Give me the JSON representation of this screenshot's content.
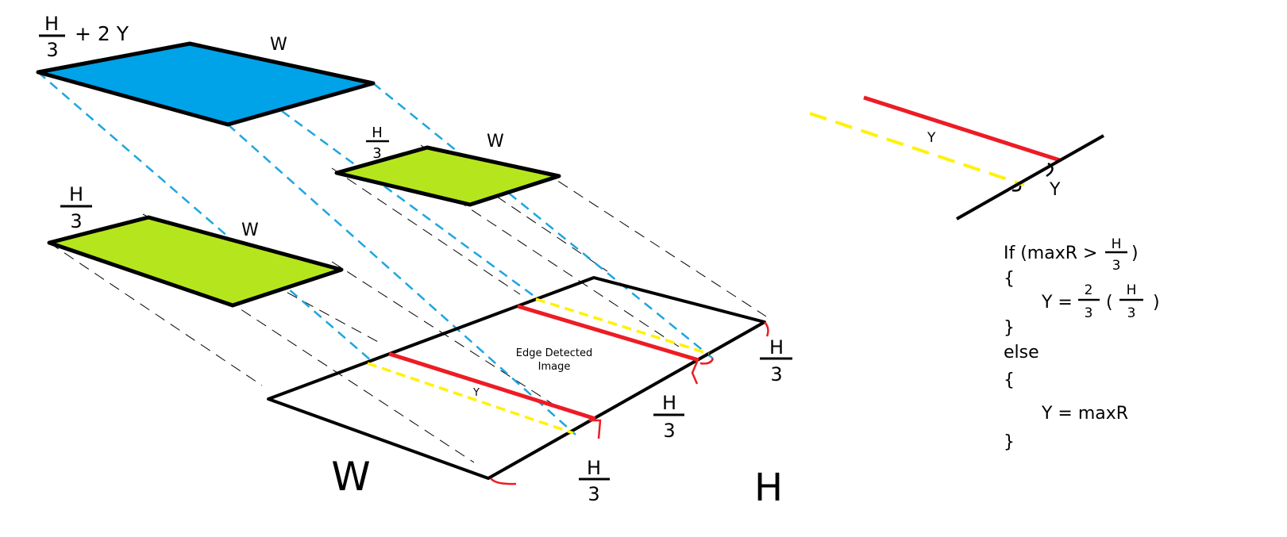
{
  "labels": {
    "top_h_num": "H",
    "top_h_den": "3",
    "top_plus": "+ 2 Y",
    "top_w": "W",
    "mid_h_num": "H",
    "mid_h_den": "3",
    "mid_w": "W",
    "left_h_num": "H",
    "left_h_den": "3",
    "left_w": "W",
    "image_line1": "Edge Detected",
    "image_line2": "Image",
    "image_y": "Y",
    "base_w": "W",
    "base_h": "H",
    "bottom_h_num": "H",
    "bottom_h_den": "3",
    "midright_h_num": "H",
    "midright_h_den": "3",
    "right_h_num": "H",
    "right_h_den": "3",
    "detail_y_top": "Y",
    "detail_y_right": "Y"
  },
  "pseudocode": {
    "if_prefix": "If (maxR >",
    "if_frac_num": "H",
    "if_frac_den": "3",
    "if_close": ")",
    "open1": "{",
    "assign1_prefix": "Y =",
    "assign1_frac_num": "2",
    "assign1_frac_den": "3",
    "assign1_paren_open": "(",
    "assign1_frac2_num": "H",
    "assign1_frac2_den": "3",
    "assign1_paren_close": ")",
    "close1": "}",
    "else": "else",
    "open2": "{",
    "assign2": "Y = maxR",
    "close2": "}"
  },
  "colors": {
    "blue_fill": "#00a2e8",
    "green_fill": "#b5e61d",
    "red": "#ed1c24",
    "yellow": "#fff200",
    "blue_dash": "#1ea5e0",
    "black": "#000000"
  }
}
